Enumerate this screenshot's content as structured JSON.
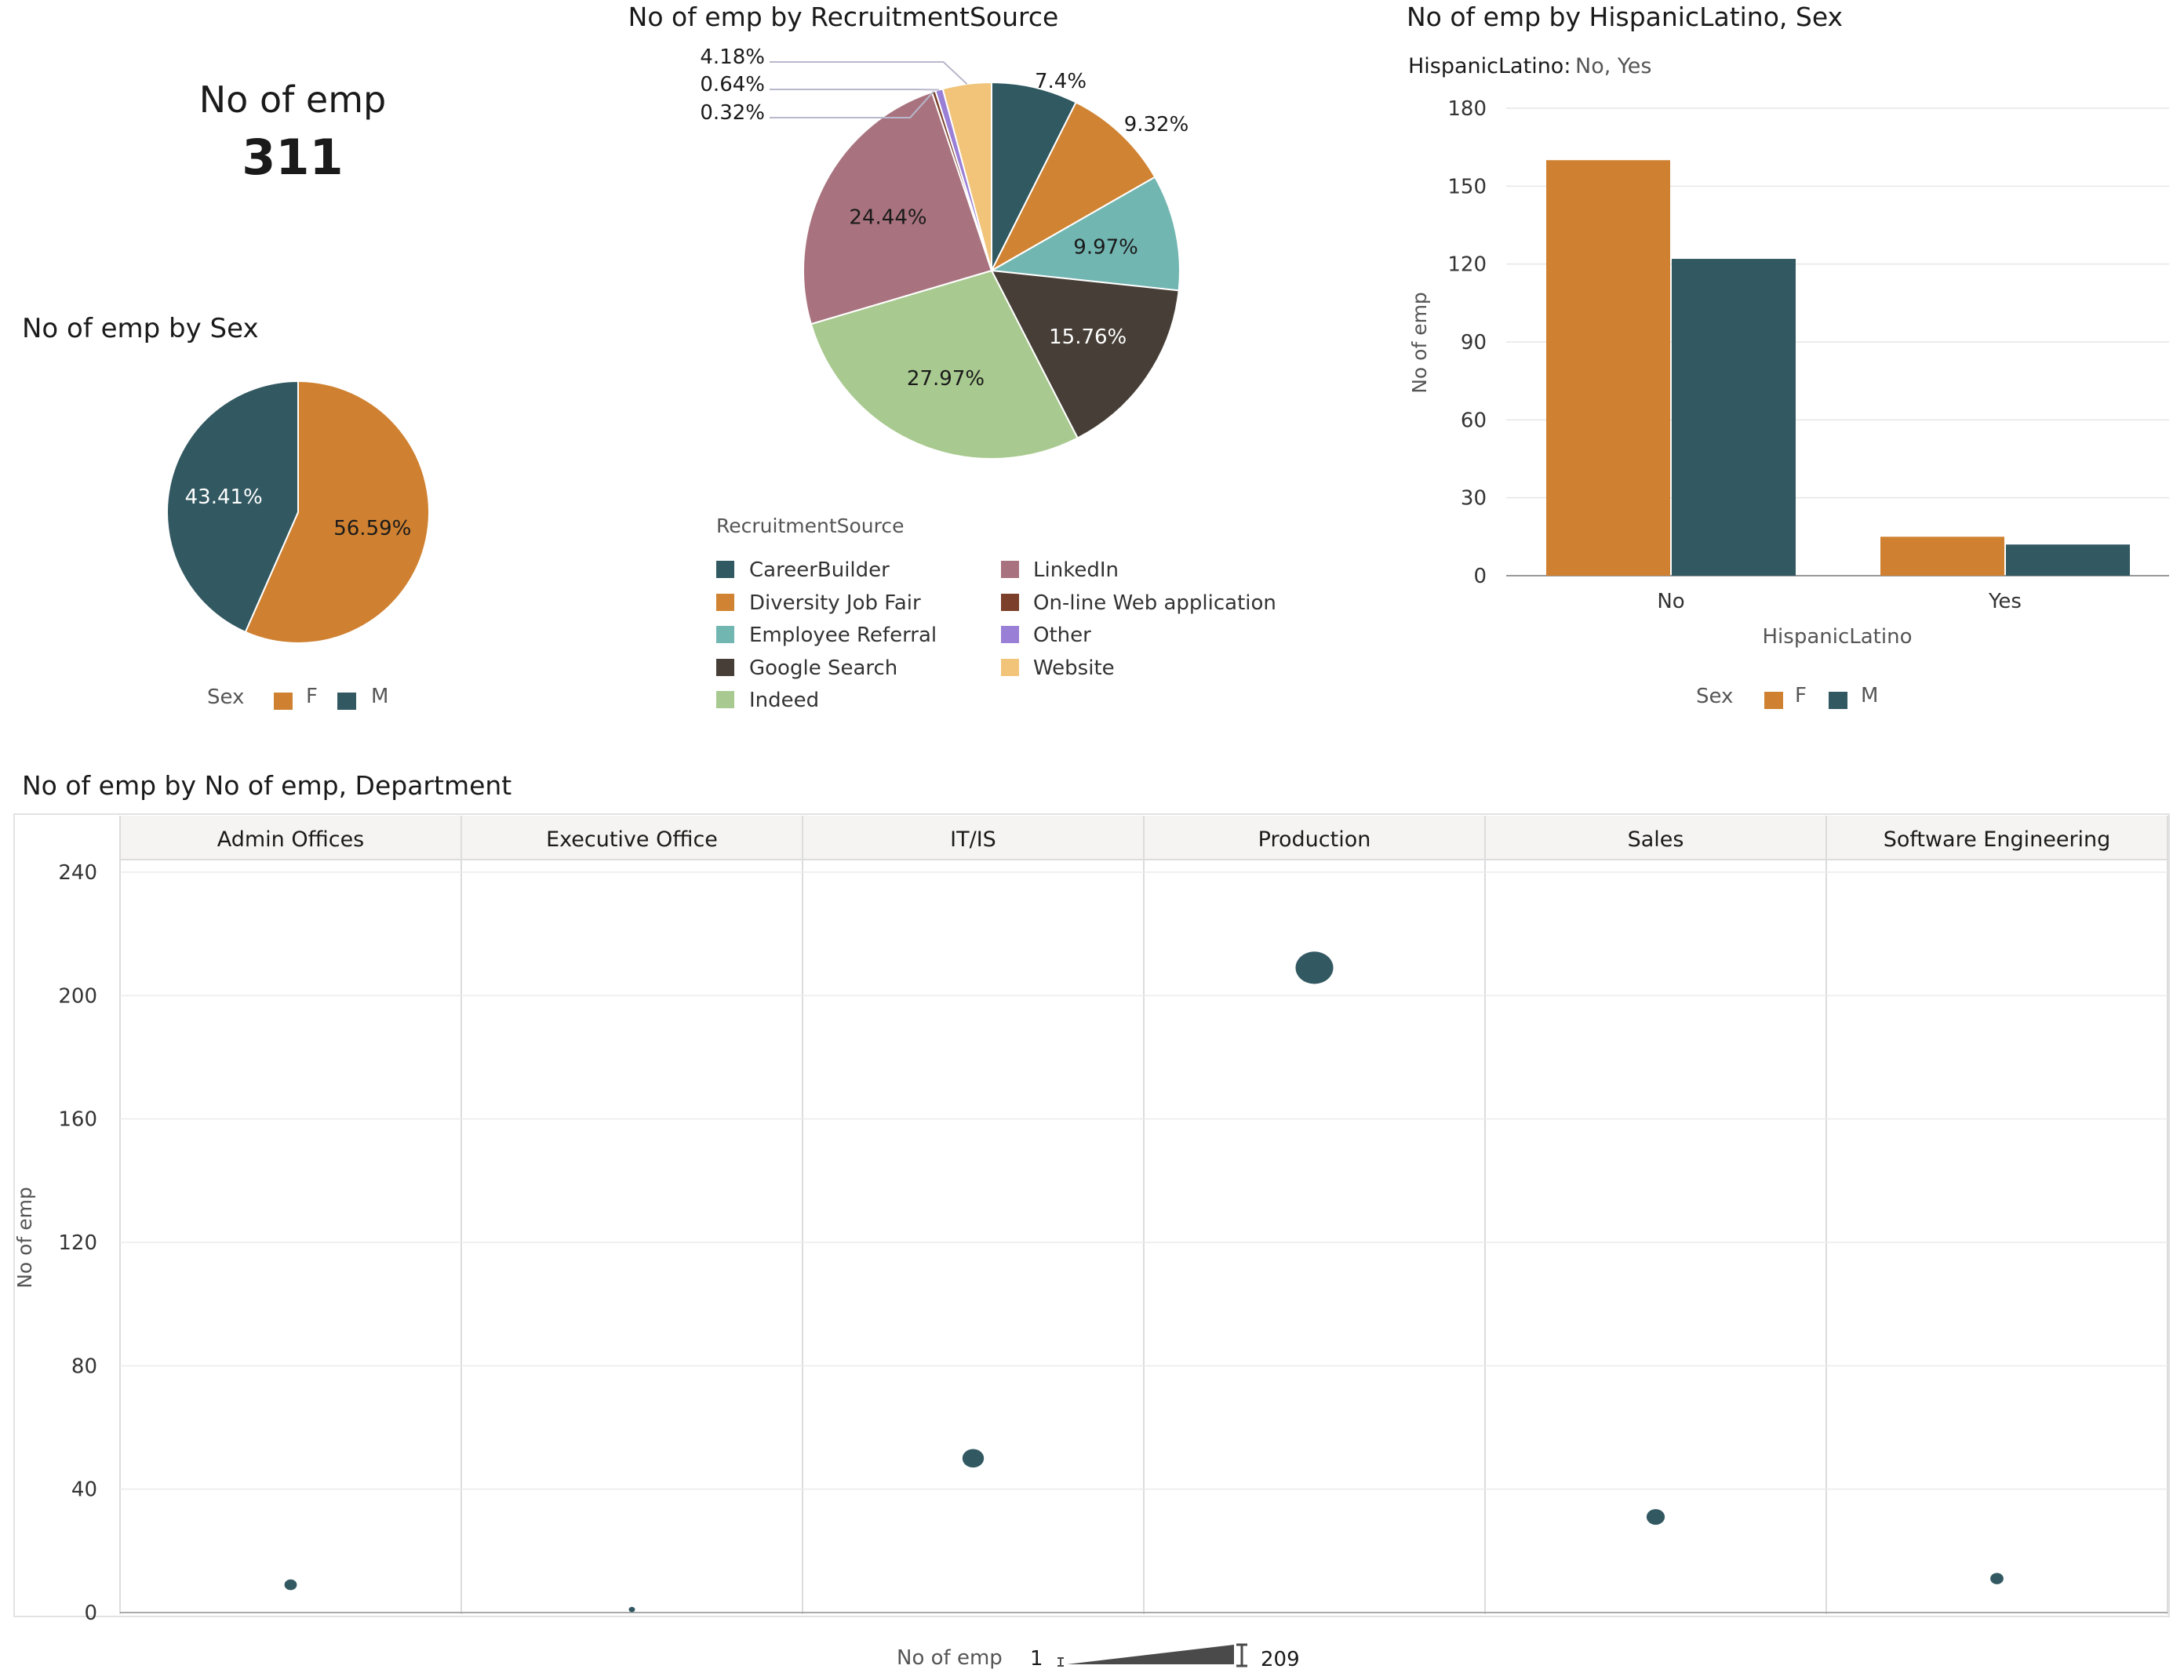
{
  "colors": {
    "F": "#cf8131",
    "M": "#325861",
    "CareerBuilder": "#305961",
    "Diversity Job Fair": "#d08332",
    "Employee Referral": "#72b6b2",
    "Google Search": "#473f37",
    "Indeed": "#a8c98f",
    "LinkedIn": "#a8737e",
    "On-line Web application": "#7b3f2a",
    "Other": "#9a7fd6",
    "Website": "#f1c47a"
  },
  "kpi": {
    "title": "No of emp",
    "value": "311"
  },
  "chart_data": [
    {
      "id": "sex_pie",
      "type": "pie",
      "title": "No of emp by Sex",
      "legend_title": "Sex",
      "categories": [
        "F",
        "M"
      ],
      "values": [
        56.59,
        43.41
      ],
      "labels": [
        "56.59%",
        "43.41%"
      ]
    },
    {
      "id": "recruitment_pie",
      "type": "pie",
      "title": "No of emp by RecruitmentSource",
      "legend_title": "RecruitmentSource",
      "categories": [
        "CareerBuilder",
        "Diversity Job Fair",
        "Employee Referral",
        "Google Search",
        "Indeed",
        "LinkedIn",
        "On-line Web application",
        "Other",
        "Website"
      ],
      "values": [
        7.4,
        9.32,
        9.97,
        15.76,
        27.97,
        24.44,
        0.32,
        0.64,
        4.18
      ],
      "labels": [
        "7.4%",
        "9.32%",
        "9.97%",
        "15.76%",
        "27.97%",
        "24.44%",
        "0.32%",
        "0.64%",
        "4.18%"
      ]
    },
    {
      "id": "hispanic_bar",
      "type": "bar",
      "title": "No of emp by HispanicLatino, Sex",
      "filter_label": "HispanicLatino:",
      "filter_values": "No, Yes",
      "categories": [
        "No",
        "Yes"
      ],
      "series": [
        {
          "name": "F",
          "values": [
            160,
            15
          ]
        },
        {
          "name": "M",
          "values": [
            122,
            12
          ]
        }
      ],
      "xlabel": "HispanicLatino",
      "ylabel": "No of emp",
      "ylim": [
        0,
        180
      ],
      "yticks": [
        0,
        30,
        60,
        90,
        120,
        150,
        180
      ],
      "legend_title": "Sex"
    },
    {
      "id": "department_scatter",
      "type": "scatter",
      "title": "No of emp by No of emp, Department",
      "categories": [
        "Admin Offices",
        "Executive Office",
        "IT/IS",
        "Production",
        "Sales",
        "Software Engineering"
      ],
      "values": [
        9,
        1,
        50,
        209,
        31,
        11
      ],
      "ylabel": "No of emp",
      "ylim": [
        0,
        240
      ],
      "yticks": [
        0,
        40,
        80,
        120,
        160,
        200,
        240
      ],
      "size_legend": {
        "label": "No of emp",
        "min": "1",
        "max": "209"
      }
    }
  ]
}
